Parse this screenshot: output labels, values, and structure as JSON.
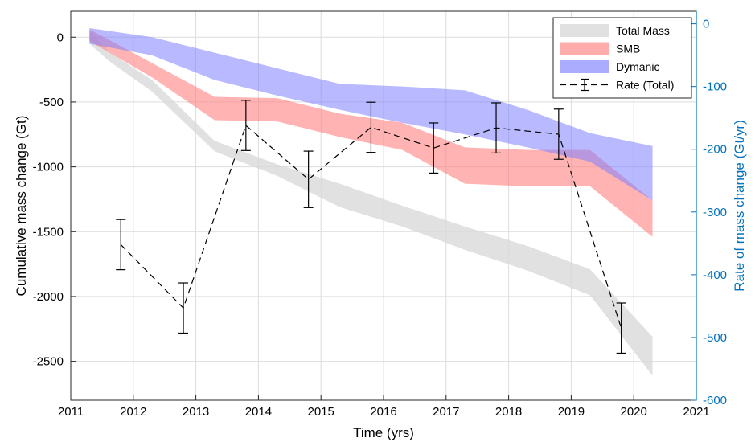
{
  "chart_data": {
    "type": "area",
    "xlabel": "Time (yrs)",
    "ylabel": "Cumulative mass change (Gt)",
    "ylabel_right": "Rate of mass change (Gt/yr)",
    "xlim": [
      2011,
      2021
    ],
    "ylim": [
      -2800,
      200
    ],
    "ylim_right": [
      -600,
      20
    ],
    "xticks": [
      "2011",
      "2012",
      "2013",
      "2014",
      "2015",
      "2016",
      "2017",
      "2018",
      "2019",
      "2020",
      "2021"
    ],
    "yticks": [
      "0",
      "-500",
      "-1000",
      "-1500",
      "-2000",
      "-2500"
    ],
    "yticks_right": [
      "0",
      "-100",
      "-200",
      "-300",
      "-400",
      "-500",
      "-600"
    ],
    "grid": true,
    "legend_position": "top-right",
    "colors": {
      "total": "#d9d9d9",
      "smb": "#ff8080",
      "dynamic": "#8080ff",
      "rate": "#000000",
      "right_axis": "#0072bd"
    },
    "bands": [
      {
        "name": "Total Mass",
        "x": [
          2011.3,
          2011.6,
          2012.3,
          2013.3,
          2014.3,
          2015.3,
          2016.3,
          2017.3,
          2018.3,
          2019.3,
          2020.3
        ],
        "upper": [
          50,
          -110,
          -330,
          -800,
          -980,
          -1130,
          -1300,
          -1460,
          -1610,
          -1790,
          -2310
        ],
        "lower": [
          -50,
          -180,
          -420,
          -880,
          -1070,
          -1310,
          -1460,
          -1640,
          -1800,
          -1990,
          -2610
        ]
      },
      {
        "name": "SMB",
        "x": [
          2011.3,
          2012.3,
          2013.3,
          2014.3,
          2015.3,
          2016.3,
          2017.3,
          2018.3,
          2019.3,
          2020.3
        ],
        "upper": [
          60,
          -200,
          -460,
          -470,
          -590,
          -660,
          -850,
          -870,
          -870,
          -1260
        ],
        "lower": [
          -30,
          -310,
          -640,
          -650,
          -770,
          -870,
          -1130,
          -1150,
          -1150,
          -1540
        ]
      },
      {
        "name": "Dymanic",
        "x": [
          2011.3,
          2012.3,
          2013.3,
          2014.3,
          2015.3,
          2016.3,
          2017.3,
          2018.3,
          2019.3,
          2020.3
        ],
        "upper": [
          70,
          0,
          -120,
          -240,
          -360,
          -380,
          -410,
          -560,
          -740,
          -840
        ],
        "lower": [
          -50,
          -140,
          -330,
          -450,
          -560,
          -660,
          -750,
          -850,
          -960,
          -1260
        ]
      }
    ],
    "rate": {
      "name": "Rate (Total)",
      "x": [
        2011.8,
        2012.8,
        2013.8,
        2014.8,
        2015.8,
        2016.8,
        2017.8,
        2018.8,
        2019.8
      ],
      "y": [
        -352,
        -453,
        -162,
        -248,
        -165,
        -198,
        -166,
        -176,
        -485
      ],
      "err": [
        40,
        40,
        40,
        45,
        40,
        40,
        40,
        40,
        40
      ]
    }
  }
}
